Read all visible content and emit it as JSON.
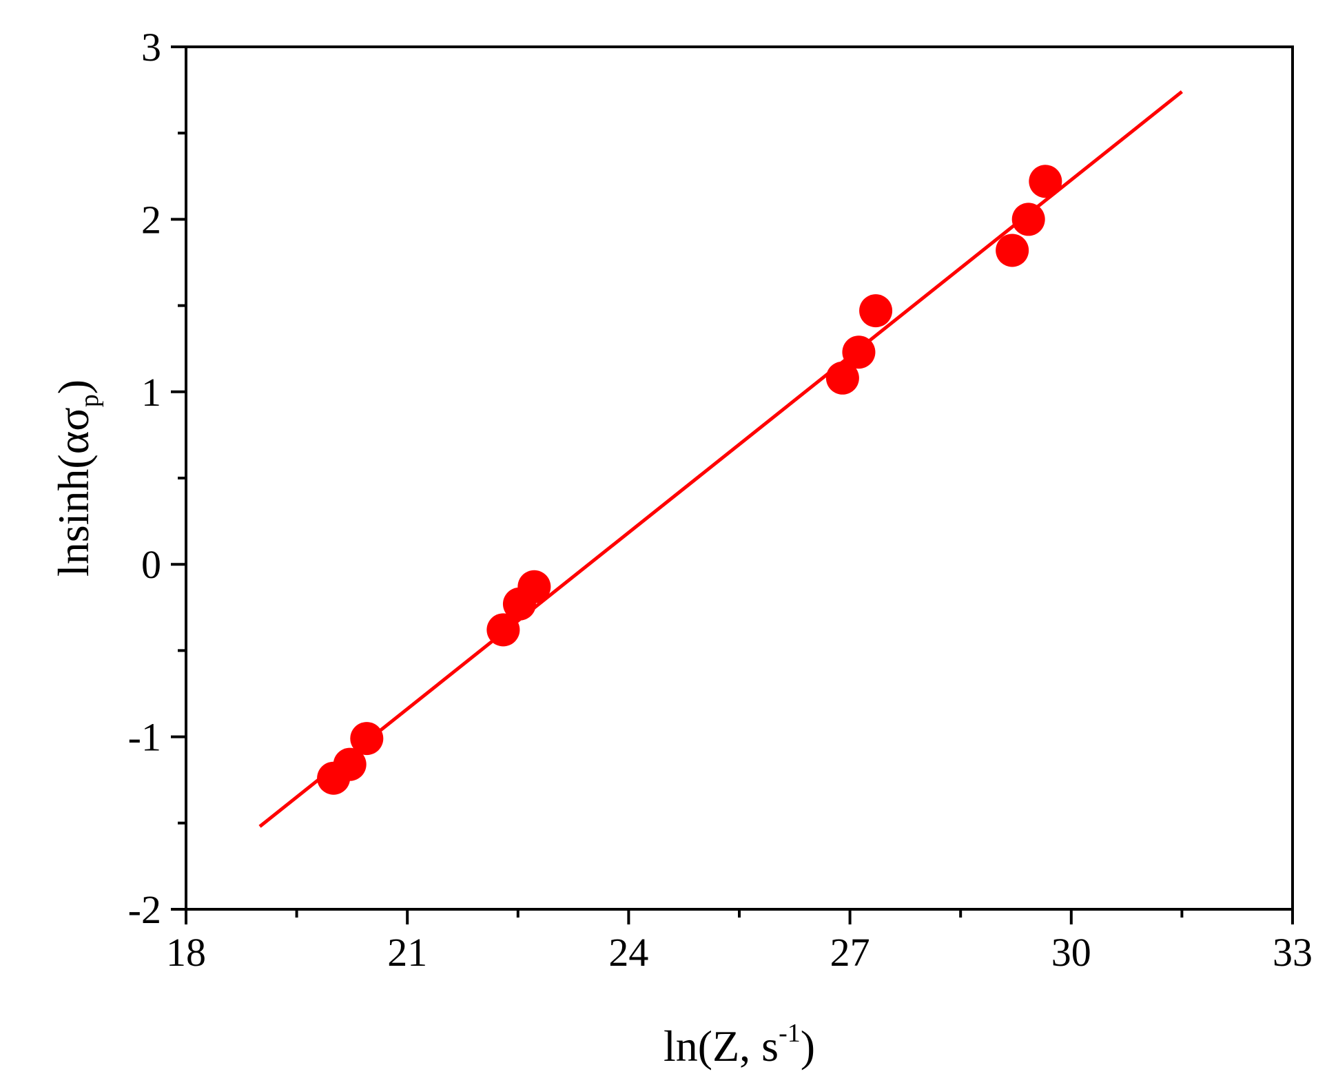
{
  "chart_data": {
    "type": "scatter",
    "xlabel": {
      "main": "ln(Z, s",
      "sup": "-1",
      "end": ")"
    },
    "ylabel": {
      "main": "lnsinh(ασ",
      "sub": "p",
      "end": ")"
    },
    "xlim": [
      18,
      33
    ],
    "ylim": [
      -2,
      3
    ],
    "x_ticks": [
      18,
      21,
      24,
      27,
      30,
      33
    ],
    "y_ticks": [
      -2,
      -1,
      0,
      1,
      2,
      3
    ],
    "x_tick_labels": [
      "18",
      "21",
      "24",
      "27",
      "30",
      "33"
    ],
    "y_tick_labels": [
      "-2",
      "-1",
      "0",
      "1",
      "2",
      "3"
    ],
    "grid": false,
    "series": [
      {
        "marker": "circle",
        "color": "#ff0000",
        "points": [
          {
            "x": 20.0,
            "y": -1.24
          },
          {
            "x": 20.22,
            "y": -1.16
          },
          {
            "x": 20.45,
            "y": -1.01
          },
          {
            "x": 22.3,
            "y": -0.38
          },
          {
            "x": 22.52,
            "y": -0.23
          },
          {
            "x": 22.72,
            "y": -0.13
          },
          {
            "x": 26.9,
            "y": 1.08
          },
          {
            "x": 27.12,
            "y": 1.23
          },
          {
            "x": 27.35,
            "y": 1.47
          },
          {
            "x": 29.2,
            "y": 1.82
          },
          {
            "x": 29.42,
            "y": 2.0
          },
          {
            "x": 29.65,
            "y": 2.22
          }
        ]
      }
    ],
    "fit_line": {
      "color": "#ff0000",
      "x": [
        19.0,
        31.5
      ],
      "y": [
        -1.52,
        2.74
      ]
    }
  }
}
